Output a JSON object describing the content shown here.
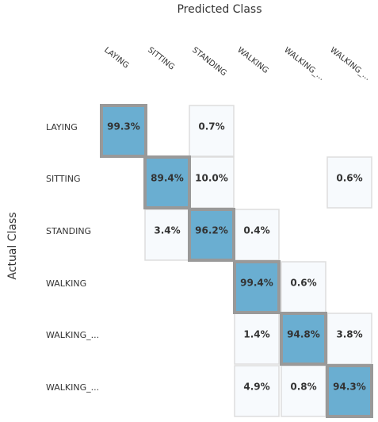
{
  "chart_data": {
    "type": "heatmap",
    "title": "",
    "xlabel": "Predicted Class",
    "ylabel": "Actual Class",
    "x_categories": [
      "LAYING",
      "SITTING",
      "STANDING",
      "WALKING",
      "WALKING_...",
      "WALKING_..."
    ],
    "y_categories": [
      "LAYING",
      "SITTING",
      "STANDING",
      "WALKING",
      "WALKING_...",
      "WALKING_..."
    ],
    "cells": [
      {
        "row": 0,
        "col": 0,
        "value": 99.3,
        "label": "99.3%"
      },
      {
        "row": 0,
        "col": 2,
        "value": 0.7,
        "label": "0.7%"
      },
      {
        "row": 1,
        "col": 1,
        "value": 89.4,
        "label": "89.4%"
      },
      {
        "row": 1,
        "col": 2,
        "value": 10.0,
        "label": "10.0%"
      },
      {
        "row": 1,
        "col": 5,
        "value": 0.6,
        "label": "0.6%"
      },
      {
        "row": 2,
        "col": 1,
        "value": 3.4,
        "label": "3.4%"
      },
      {
        "row": 2,
        "col": 2,
        "value": 96.2,
        "label": "96.2%"
      },
      {
        "row": 2,
        "col": 3,
        "value": 0.4,
        "label": "0.4%"
      },
      {
        "row": 3,
        "col": 3,
        "value": 99.4,
        "label": "99.4%"
      },
      {
        "row": 3,
        "col": 4,
        "value": 0.6,
        "label": "0.6%"
      },
      {
        "row": 4,
        "col": 3,
        "value": 1.4,
        "label": "1.4%"
      },
      {
        "row": 4,
        "col": 4,
        "value": 94.8,
        "label": "94.8%"
      },
      {
        "row": 4,
        "col": 5,
        "value": 3.8,
        "label": "3.8%"
      },
      {
        "row": 5,
        "col": 3,
        "value": 4.9,
        "label": "4.9%"
      },
      {
        "row": 5,
        "col": 4,
        "value": 0.8,
        "label": "0.8%"
      },
      {
        "row": 5,
        "col": 5,
        "value": 94.3,
        "label": "94.3%"
      }
    ],
    "colors": {
      "diagonal_fill": "#6aaed1",
      "diagonal_border": "#999999",
      "offdiag_fill": "#f7fafd",
      "offdiag_border": "#dddddd"
    }
  }
}
